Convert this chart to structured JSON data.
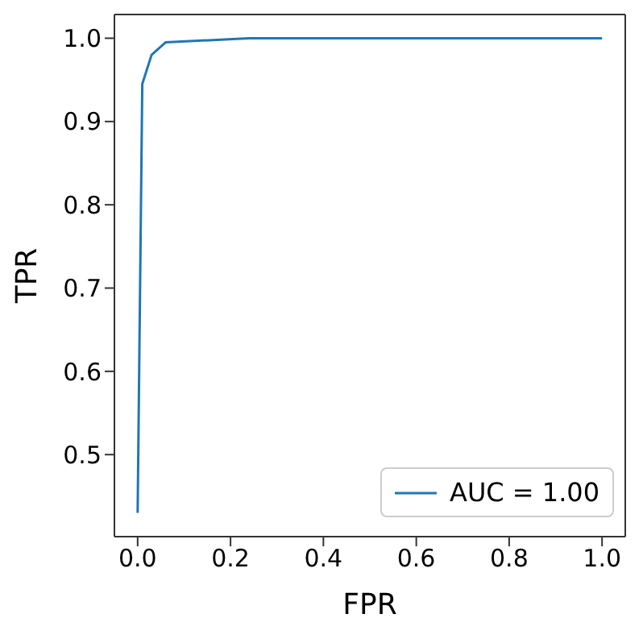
{
  "chart_data": {
    "type": "line",
    "xlabel": "FPR",
    "ylabel": "TPR",
    "x": [
      0,
      0.01,
      0.03,
      0.06,
      0.24,
      1.0
    ],
    "series": [
      {
        "name": "AUC = 1.00",
        "color": "#1f77b4",
        "values": [
          0.43,
          0.945,
          0.98,
          0.995,
          1.0,
          1.0
        ]
      }
    ],
    "xlim": [
      -0.05,
      1.05
    ],
    "xticks": [
      {
        "value": 0,
        "label": "0.0"
      },
      0.2,
      0.4,
      0.6,
      0.8,
      {
        "value": 1,
        "label": "1.0"
      }
    ],
    "ylim": [
      0.4015,
      1.0285
    ],
    "yticks": [
      0.5,
      0.6,
      0.7,
      0.8,
      0.9,
      {
        "value": 1,
        "label": "1.0"
      }
    ],
    "legend": "bottom right",
    "grid": false,
    "marker": "none",
    "line_style": "solid"
  }
}
